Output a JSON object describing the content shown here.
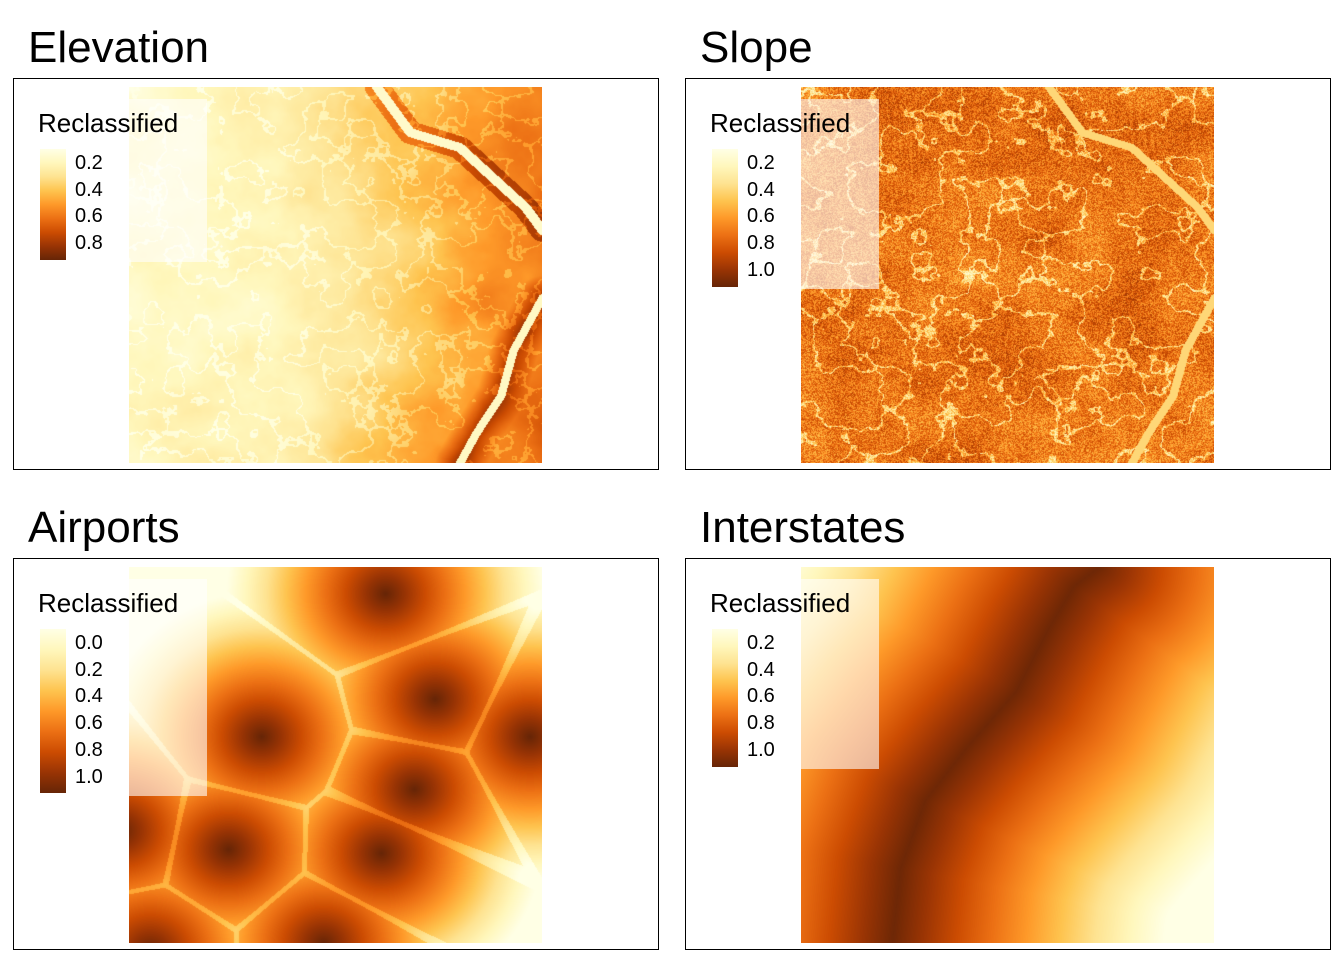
{
  "palette": [
    "#ffffe5",
    "#fff7bc",
    "#fee391",
    "#fec44f",
    "#fe9929",
    "#ec7014",
    "#cc4c02",
    "#993404",
    "#662506"
  ],
  "panels": [
    {
      "title": "Elevation",
      "legend": {
        "title": "Reclassified",
        "labels": [
          "0.2",
          "0.4",
          "0.6",
          "0.8"
        ]
      },
      "pattern": "elevation"
    },
    {
      "title": "Slope",
      "legend": {
        "title": "Reclassified",
        "labels": [
          "0.2",
          "0.4",
          "0.6",
          "0.8",
          "1.0"
        ]
      },
      "pattern": "slope"
    },
    {
      "title": "Airports",
      "legend": {
        "title": "Reclassified",
        "labels": [
          "0.0",
          "0.2",
          "0.4",
          "0.6",
          "0.8",
          "1.0"
        ]
      },
      "pattern": "airports"
    },
    {
      "title": "Interstates",
      "legend": {
        "title": "Reclassified",
        "labels": [
          "0.2",
          "0.4",
          "0.6",
          "0.8",
          "1.0"
        ]
      },
      "pattern": "interstates"
    }
  ]
}
